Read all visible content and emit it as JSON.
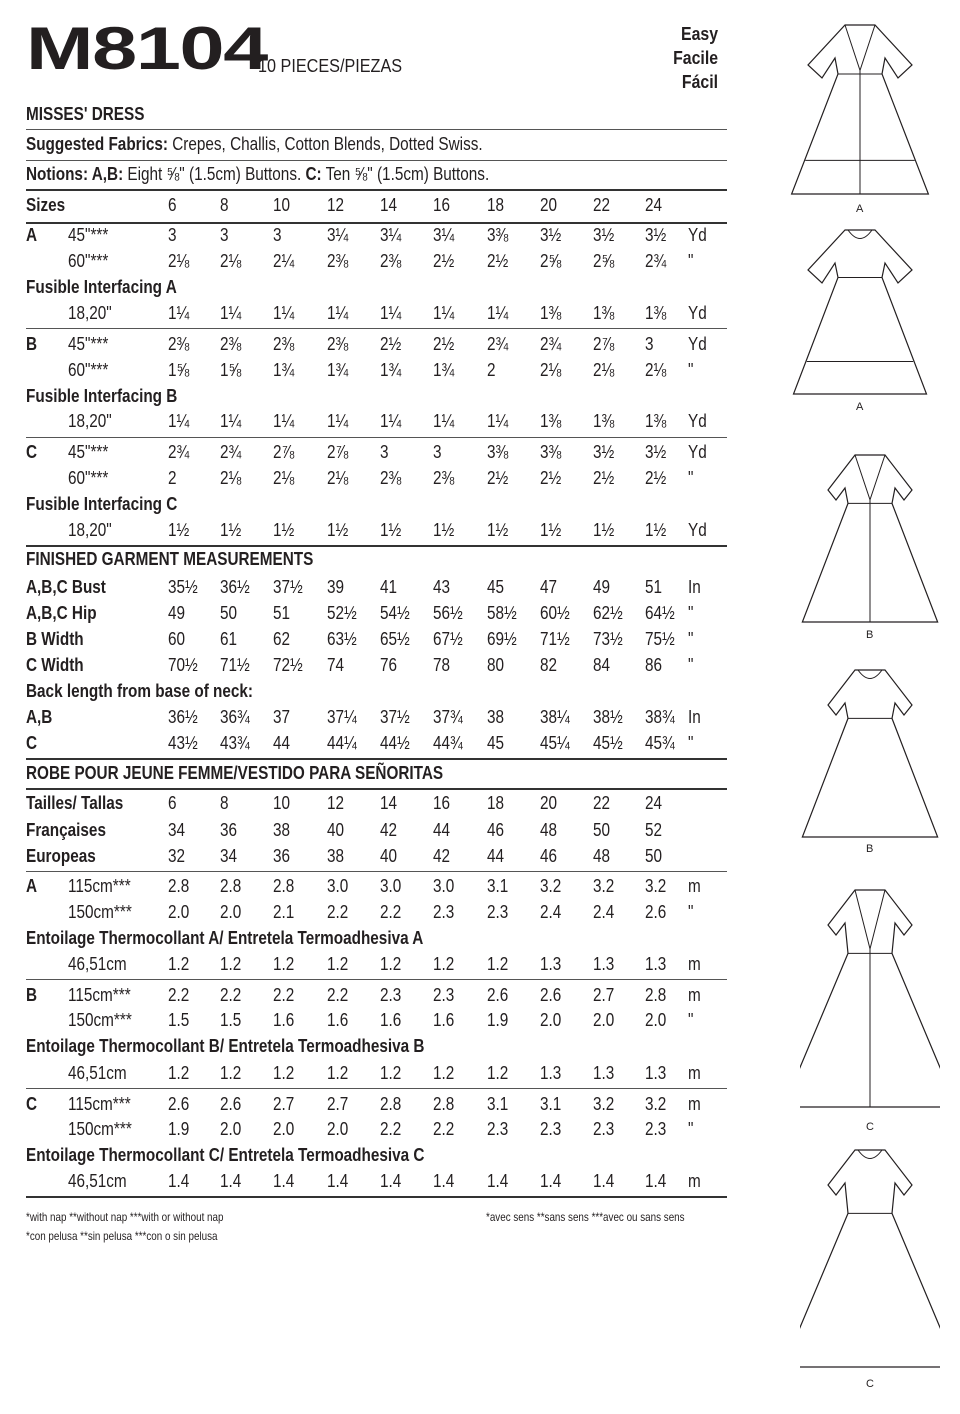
{
  "header": {
    "pattern_number": "M8104",
    "pieces": "10 PIECES/PIEZAS",
    "difficulty": [
      "Easy",
      "Facile",
      "Fácil"
    ],
    "title": "MISSES' DRESS",
    "fabrics_label": "Suggested Fabrics:",
    "fabrics": " Crepes, Challis, Cotton Blends, Dotted Swiss.",
    "notions_label": "Notions: A,B:",
    "notions_ab": " Eight ⅝\" (1.5cm) Buttons. ",
    "notions_c_label": "C:",
    "notions_c": " Ten ⅝\" (1.5cm) Buttons."
  },
  "english": {
    "sizes_label": "Sizes",
    "sizes": [
      "6",
      "8",
      "10",
      "12",
      "14",
      "16",
      "18",
      "20",
      "22",
      "24"
    ],
    "yardage": [
      {
        "view": "A",
        "rows": [
          {
            "width": "45\"***",
            "values": [
              "3",
              "3",
              "3",
              "3¼",
              "3¼",
              "3¼",
              "3⅜",
              "3½",
              "3½",
              "3½"
            ],
            "unit": "Yd"
          },
          {
            "width": "60\"***",
            "values": [
              "2⅛",
              "2⅛",
              "2¼",
              "2⅜",
              "2⅜",
              "2½",
              "2½",
              "2⅝",
              "2⅝",
              "2¾"
            ],
            "unit": "\""
          }
        ],
        "interfacing": {
          "label": "Fusible Interfacing A",
          "width": "18,20\"",
          "values": [
            "1¼",
            "1¼",
            "1¼",
            "1¼",
            "1¼",
            "1¼",
            "1¼",
            "1⅜",
            "1⅜",
            "1⅜"
          ],
          "unit": "Yd"
        }
      },
      {
        "view": "B",
        "rows": [
          {
            "width": "45\"***",
            "values": [
              "2⅜",
              "2⅜",
              "2⅜",
              "2⅜",
              "2½",
              "2½",
              "2¾",
              "2¾",
              "2⅞",
              "3"
            ],
            "unit": "Yd"
          },
          {
            "width": "60\"***",
            "values": [
              "1⅝",
              "1⅝",
              "1¾",
              "1¾",
              "1¾",
              "1¾",
              "2",
              "2⅛",
              "2⅛",
              "2⅛"
            ],
            "unit": "\""
          }
        ],
        "interfacing": {
          "label": "Fusible Interfacing B",
          "width": "18,20\"",
          "values": [
            "1¼",
            "1¼",
            "1¼",
            "1¼",
            "1¼",
            "1¼",
            "1¼",
            "1⅜",
            "1⅜",
            "1⅜"
          ],
          "unit": "Yd"
        }
      },
      {
        "view": "C",
        "rows": [
          {
            "width": "45\"***",
            "values": [
              "2¾",
              "2¾",
              "2⅞",
              "2⅞",
              "3",
              "3",
              "3⅜",
              "3⅜",
              "3½",
              "3½"
            ],
            "unit": "Yd"
          },
          {
            "width": "60\"***",
            "values": [
              "2",
              "2⅛",
              "2⅛",
              "2⅛",
              "2⅜",
              "2⅜",
              "2½",
              "2½",
              "2½",
              "2½"
            ],
            "unit": "\""
          }
        ],
        "interfacing": {
          "label": "Fusible Interfacing C",
          "width": "18,20\"",
          "values": [
            "1½",
            "1½",
            "1½",
            "1½",
            "1½",
            "1½",
            "1½",
            "1½",
            "1½",
            "1½"
          ],
          "unit": "Yd"
        }
      }
    ],
    "finished": {
      "title": "FINISHED GARMENT MEASUREMENTS",
      "rows": [
        {
          "label": "A,B,C Bust",
          "values": [
            "35½",
            "36½",
            "37½",
            "39",
            "41",
            "43",
            "45",
            "47",
            "49",
            "51"
          ],
          "unit": "In"
        },
        {
          "label": "A,B,C Hip",
          "values": [
            "49",
            "50",
            "51",
            "52½",
            "54½",
            "56½",
            "58½",
            "60½",
            "62½",
            "64½"
          ],
          "unit": "\""
        },
        {
          "label": "B Width",
          "values": [
            "60",
            "61",
            "62",
            "63½",
            "65½",
            "67½",
            "69½",
            "71½",
            "73½",
            "75½"
          ],
          "unit": "\""
        },
        {
          "label": "C Width",
          "values": [
            "70½",
            "71½",
            "72½",
            "74",
            "76",
            "78",
            "80",
            "82",
            "84",
            "86"
          ],
          "unit": "\""
        }
      ],
      "back_length_label": "Back length from base of neck:",
      "back_rows": [
        {
          "label": "A,B",
          "values": [
            "36½",
            "36¾",
            "37",
            "37¼",
            "37½",
            "37¾",
            "38",
            "38¼",
            "38½",
            "38¾"
          ],
          "unit": "In"
        },
        {
          "label": "C",
          "values": [
            "43½",
            "43¾",
            "44",
            "44¼",
            "44½",
            "44¾",
            "45",
            "45¼",
            "45½",
            "45¾"
          ],
          "unit": "\""
        }
      ]
    }
  },
  "metric": {
    "title": "ROBE POUR JEUNE FEMME/VESTIDO PARA SEÑORITAS",
    "tailles_label": "Tailles/ Tallas",
    "sizes": [
      "6",
      "8",
      "10",
      "12",
      "14",
      "16",
      "18",
      "20",
      "22",
      "24"
    ],
    "francaises": {
      "label": "Françaises",
      "values": [
        "34",
        "36",
        "38",
        "40",
        "42",
        "44",
        "46",
        "48",
        "50",
        "52"
      ]
    },
    "europeas": {
      "label": "Europeas",
      "values": [
        "32",
        "34",
        "36",
        "38",
        "40",
        "42",
        "44",
        "46",
        "48",
        "50"
      ]
    },
    "yardage": [
      {
        "view": "A",
        "rows": [
          {
            "width": "115cm***",
            "values": [
              "2.8",
              "2.8",
              "2.8",
              "3.0",
              "3.0",
              "3.0",
              "3.1",
              "3.2",
              "3.2",
              "3.2"
            ],
            "unit": "m"
          },
          {
            "width": "150cm***",
            "values": [
              "2.0",
              "2.0",
              "2.1",
              "2.2",
              "2.2",
              "2.3",
              "2.3",
              "2.4",
              "2.4",
              "2.6"
            ],
            "unit": "\""
          }
        ],
        "interfacing": {
          "label": "Entoilage Thermocollant A/ Entretela Termoadhesiva A",
          "width": "46,51cm",
          "values": [
            "1.2",
            "1.2",
            "1.2",
            "1.2",
            "1.2",
            "1.2",
            "1.2",
            "1.3",
            "1.3",
            "1.3"
          ],
          "unit": "m"
        }
      },
      {
        "view": "B",
        "rows": [
          {
            "width": "115cm***",
            "values": [
              "2.2",
              "2.2",
              "2.2",
              "2.2",
              "2.3",
              "2.3",
              "2.6",
              "2.6",
              "2.7",
              "2.8"
            ],
            "unit": "m"
          },
          {
            "width": "150cm***",
            "values": [
              "1.5",
              "1.5",
              "1.6",
              "1.6",
              "1.6",
              "1.6",
              "1.9",
              "2.0",
              "2.0",
              "2.0"
            ],
            "unit": "\""
          }
        ],
        "interfacing": {
          "label": "Entoilage Thermocollant B/ Entretela Termoadhesiva B",
          "width": "46,51cm",
          "values": [
            "1.2",
            "1.2",
            "1.2",
            "1.2",
            "1.2",
            "1.2",
            "1.2",
            "1.3",
            "1.3",
            "1.3"
          ],
          "unit": "m"
        }
      },
      {
        "view": "C",
        "rows": [
          {
            "width": "115cm***",
            "values": [
              "2.6",
              "2.6",
              "2.7",
              "2.7",
              "2.8",
              "2.8",
              "3.1",
              "3.1",
              "3.2",
              "3.2"
            ],
            "unit": "m"
          },
          {
            "width": "150cm***",
            "values": [
              "1.9",
              "2.0",
              "2.0",
              "2.0",
              "2.2",
              "2.2",
              "2.3",
              "2.3",
              "2.3",
              "2.3"
            ],
            "unit": "\""
          }
        ],
        "interfacing": {
          "label": "Entoilage Thermocollant C/ Entretela Termoadhesiva C",
          "width": "46,51cm",
          "values": [
            "1.4",
            "1.4",
            "1.4",
            "1.4",
            "1.4",
            "1.4",
            "1.4",
            "1.4",
            "1.4",
            "1.4"
          ],
          "unit": "m"
        }
      }
    ]
  },
  "footnotes": {
    "english": "*with nap   **without nap   ***with or without nap",
    "spanish": "*con pelusa   **sin pelusa   ***con o sin pelusa",
    "french": "*avec sens   **sans sens   ***avec ou sans sens"
  },
  "illustrations": [
    "A",
    "A",
    "B",
    "B",
    "C",
    "C"
  ]
}
